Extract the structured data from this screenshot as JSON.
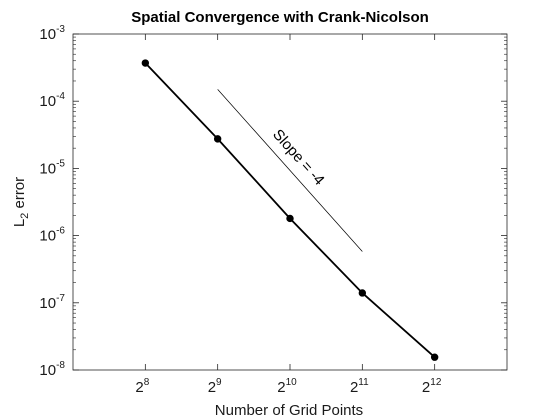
{
  "chart_data": {
    "type": "line",
    "title": "Spatial Convergence with Crank-Nicolson",
    "xlabel": "Number of Grid Points",
    "ylabel": "L_2 error",
    "ylabel_parts": {
      "base": "L",
      "sub": "2",
      "rest": " error"
    },
    "x_scale": "log2",
    "y_scale": "log10",
    "xlim": [
      128,
      8192
    ],
    "ylim": [
      1e-08,
      0.001
    ],
    "x_ticks": [
      {
        "value": 256,
        "base": "2",
        "exp": "8"
      },
      {
        "value": 512,
        "base": "2",
        "exp": "9"
      },
      {
        "value": 1024,
        "base": "2",
        "exp": "10"
      },
      {
        "value": 2048,
        "base": "2",
        "exp": "11"
      },
      {
        "value": 4096,
        "base": "2",
        "exp": "12"
      }
    ],
    "y_ticks": [
      {
        "value": 1e-08,
        "base": "10",
        "exp": "-8"
      },
      {
        "value": 1e-07,
        "base": "10",
        "exp": "-7"
      },
      {
        "value": 1e-06,
        "base": "10",
        "exp": "-6"
      },
      {
        "value": 1e-05,
        "base": "10",
        "exp": "-5"
      },
      {
        "value": 0.0001,
        "base": "10",
        "exp": "-4"
      },
      {
        "value": 0.001,
        "base": "10",
        "exp": "-3"
      }
    ],
    "series": [
      {
        "x": [
          256,
          512,
          1024,
          2048,
          4096
        ],
        "y": [
          0.00037,
          2.75e-05,
          1.8e-06,
          1.4e-07,
          1.55e-08
        ],
        "color": "#000000",
        "marker": "circle"
      }
    ],
    "reference_line": {
      "x": [
        512,
        2048
      ],
      "y": [
        0.00015,
        5.8e-07
      ],
      "color": "#000000",
      "label": "Slope = -4"
    },
    "grid": false,
    "legend": "none"
  }
}
